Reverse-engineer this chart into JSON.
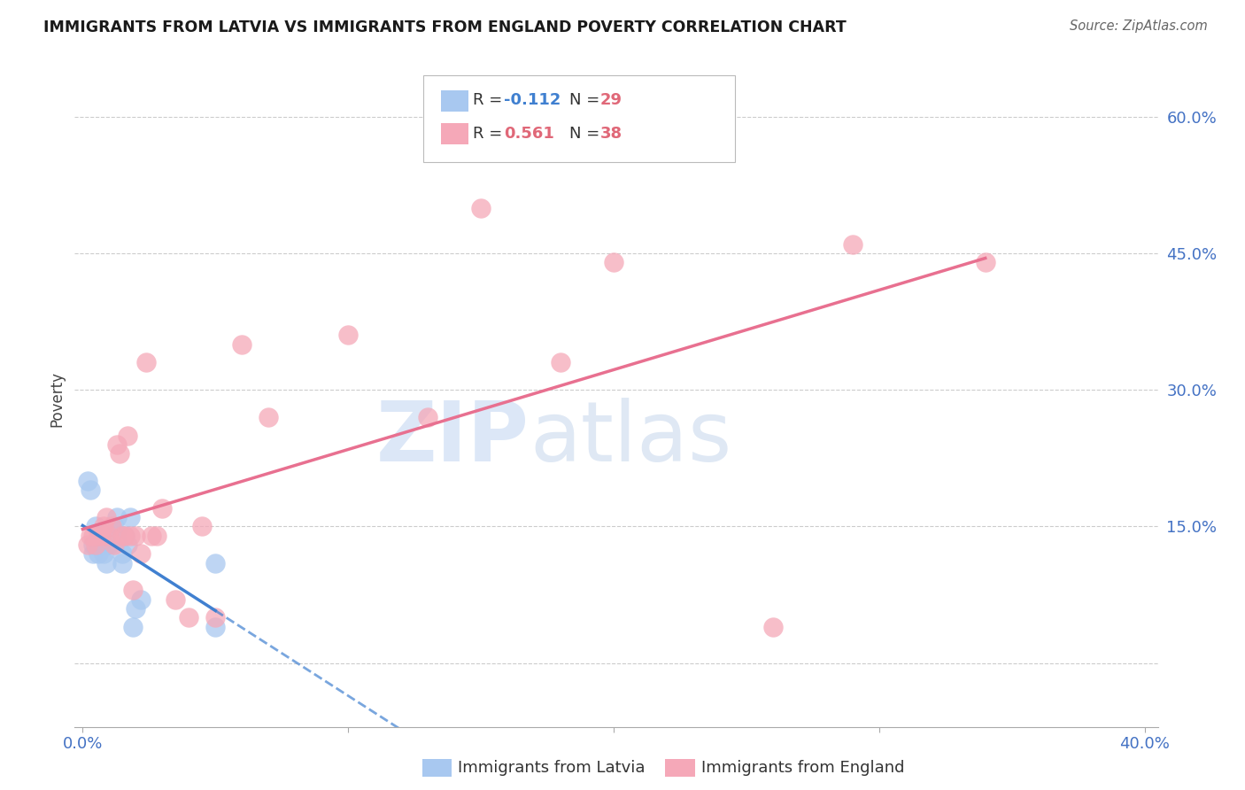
{
  "title": "IMMIGRANTS FROM LATVIA VS IMMIGRANTS FROM ENGLAND POVERTY CORRELATION CHART",
  "source": "Source: ZipAtlas.com",
  "xlabel_latvia": "Immigrants from Latvia",
  "xlabel_england": "Immigrants from England",
  "ylabel": "Poverty",
  "xlim": [
    -0.003,
    0.405
  ],
  "ylim": [
    -0.07,
    0.65
  ],
  "yticks": [
    0.0,
    0.15,
    0.3,
    0.45,
    0.6
  ],
  "xticks": [
    0.0,
    0.1,
    0.2,
    0.3,
    0.4
  ],
  "xtick_labels": [
    "0.0%",
    "",
    "",
    "",
    "40.0%"
  ],
  "ytick_labels": [
    "",
    "15.0%",
    "30.0%",
    "45.0%",
    "60.0%"
  ],
  "latvia_R": -0.112,
  "latvia_N": 29,
  "england_R": 0.561,
  "england_N": 38,
  "watermark_zip": "ZIP",
  "watermark_atlas": "atlas",
  "latvia_color": "#a8c8f0",
  "england_color": "#f5a8b8",
  "latvia_line_color": "#4080d0",
  "england_line_color": "#e87090",
  "latvia_points_x": [
    0.002,
    0.003,
    0.004,
    0.004,
    0.005,
    0.006,
    0.006,
    0.007,
    0.007,
    0.008,
    0.008,
    0.009,
    0.009,
    0.01,
    0.01,
    0.011,
    0.012,
    0.013,
    0.014,
    0.015,
    0.015,
    0.016,
    0.017,
    0.018,
    0.019,
    0.02,
    0.022,
    0.05,
    0.05
  ],
  "latvia_points_y": [
    0.2,
    0.19,
    0.13,
    0.12,
    0.15,
    0.13,
    0.12,
    0.14,
    0.13,
    0.14,
    0.12,
    0.13,
    0.11,
    0.14,
    0.13,
    0.14,
    0.15,
    0.16,
    0.14,
    0.12,
    0.11,
    0.14,
    0.13,
    0.16,
    0.04,
    0.06,
    0.07,
    0.11,
    0.04
  ],
  "england_points_x": [
    0.002,
    0.003,
    0.004,
    0.005,
    0.006,
    0.007,
    0.008,
    0.009,
    0.01,
    0.011,
    0.012,
    0.013,
    0.014,
    0.015,
    0.016,
    0.017,
    0.018,
    0.019,
    0.02,
    0.022,
    0.024,
    0.026,
    0.028,
    0.03,
    0.035,
    0.04,
    0.045,
    0.05,
    0.06,
    0.07,
    0.1,
    0.13,
    0.15,
    0.18,
    0.2,
    0.26,
    0.29,
    0.34
  ],
  "england_points_y": [
    0.13,
    0.14,
    0.14,
    0.13,
    0.14,
    0.14,
    0.15,
    0.16,
    0.14,
    0.15,
    0.13,
    0.24,
    0.23,
    0.14,
    0.14,
    0.25,
    0.14,
    0.08,
    0.14,
    0.12,
    0.33,
    0.14,
    0.14,
    0.17,
    0.07,
    0.05,
    0.15,
    0.05,
    0.35,
    0.27,
    0.36,
    0.27,
    0.5,
    0.33,
    0.44,
    0.04,
    0.46,
    0.44
  ]
}
